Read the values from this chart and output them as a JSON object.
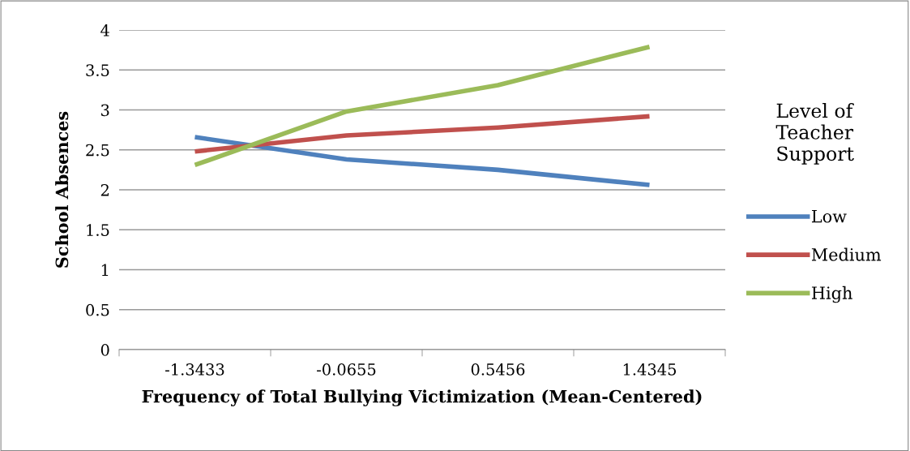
{
  "chart_data": {
    "type": "line",
    "xlabel": "Frequency of Total Bullying Victimization (Mean-Centered)",
    "ylabel": "School Absences",
    "legend_title": "Level of Teacher Support",
    "categories": [
      "-1.3433",
      "-0.0655",
      "0.5456",
      "1.4345"
    ],
    "series": [
      {
        "name": "Low",
        "color": "#4f81bd",
        "values": [
          2.66,
          2.38,
          2.25,
          2.06
        ]
      },
      {
        "name": "Medium",
        "color": "#c0504d",
        "values": [
          2.48,
          2.68,
          2.78,
          2.92
        ]
      },
      {
        "name": "High",
        "color": "#9bbb59",
        "values": [
          2.31,
          2.98,
          3.31,
          3.79
        ]
      }
    ],
    "ylim": [
      0,
      4
    ],
    "yticks": [
      0,
      0.5,
      1,
      1.5,
      2,
      2.5,
      3,
      3.5,
      4
    ],
    "grid": "y",
    "legend": "right",
    "marker": "none",
    "line_style": "solid"
  }
}
